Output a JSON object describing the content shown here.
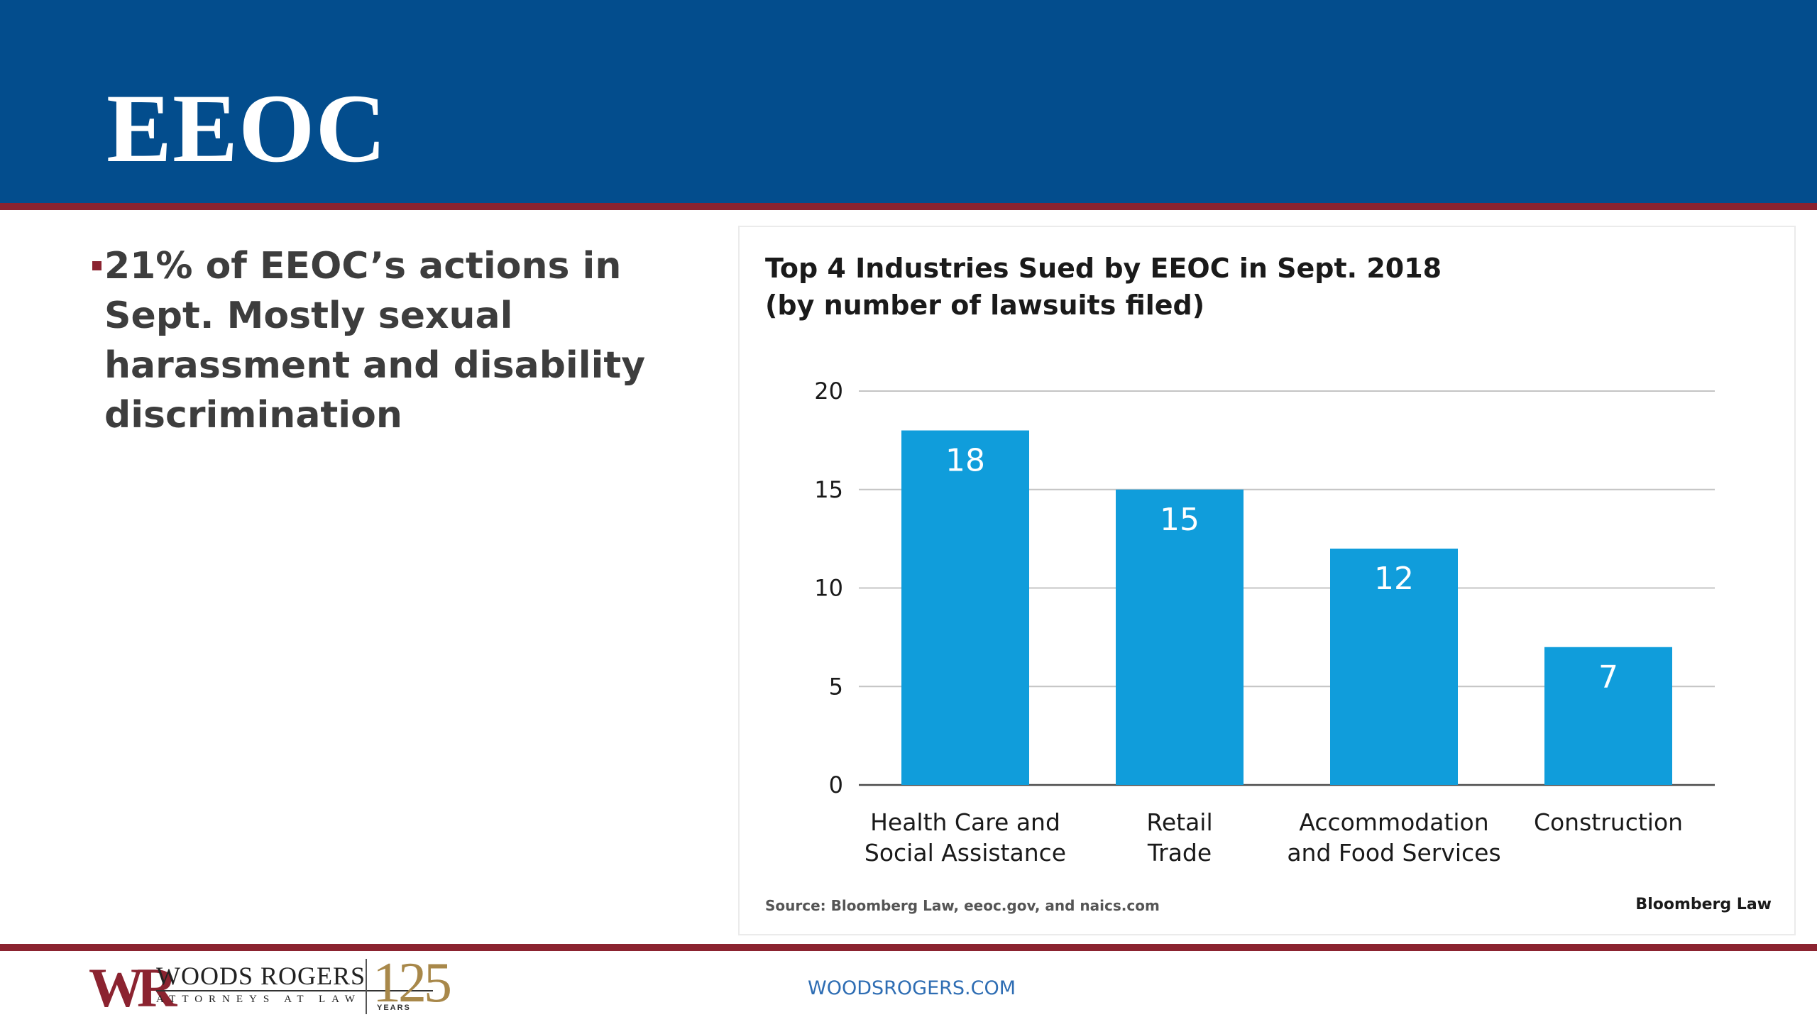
{
  "slide": {
    "title": "EEOC",
    "bullet": "21% of EEOC’s actions in Sept. Mostly sexual harassment and disability discrimination",
    "footer_url": "WOODSROGERS.COM"
  },
  "logo": {
    "monogram": "WR",
    "name": "WOODS ROGERS",
    "tagline": "ATTORNEYS AT LAW",
    "anniversary": "125",
    "anniversary_label": "YEARS"
  },
  "colors": {
    "header": "#034d8d",
    "accent_rule": "#8b2330",
    "bar": "#109ddb",
    "link": "#2e6db3"
  },
  "chart_data": {
    "type": "bar",
    "title_line1": "Top 4 Industries Sued by EEOC in Sept. 2018",
    "title_line2": "(by number of lawsuits filed)",
    "categories": [
      [
        "Health Care and",
        "Social Assistance"
      ],
      [
        "Retail",
        "Trade"
      ],
      [
        "Accommodation",
        "and Food Services"
      ],
      [
        "Construction"
      ]
    ],
    "values": [
      18,
      15,
      12,
      7
    ],
    "ylim": [
      0,
      20
    ],
    "yticks": [
      0,
      5,
      10,
      15,
      20
    ],
    "grid": true,
    "data_labels": true,
    "source": "Source: Bloomberg Law, eeoc.gov, and naics.com",
    "brand": "Bloomberg Law"
  }
}
